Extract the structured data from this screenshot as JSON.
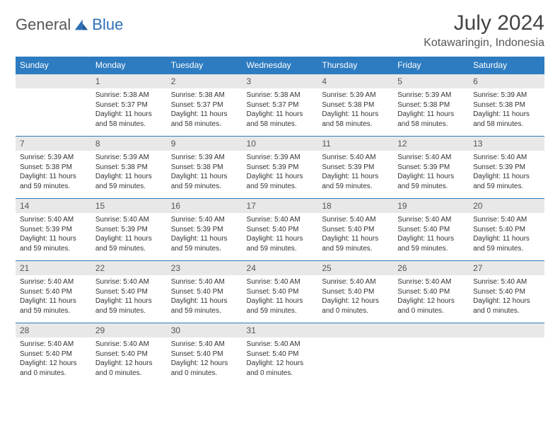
{
  "logo": {
    "text1": "General",
    "text2": "Blue"
  },
  "title": "July 2024",
  "location": "Kotawaringin, Indonesia",
  "colors": {
    "header_bg": "#2d7bc0",
    "header_text": "#ffffff",
    "daynum_bg": "#e8e8e8",
    "border": "#2d7bc0",
    "logo_accent": "#2d6fb5",
    "logo_gray": "#555555"
  },
  "days_of_week": [
    "Sunday",
    "Monday",
    "Tuesday",
    "Wednesday",
    "Thursday",
    "Friday",
    "Saturday"
  ],
  "weeks": [
    [
      null,
      {
        "n": "1",
        "sr": "5:38 AM",
        "ss": "5:37 PM",
        "dl": "11 hours and 58 minutes."
      },
      {
        "n": "2",
        "sr": "5:38 AM",
        "ss": "5:37 PM",
        "dl": "11 hours and 58 minutes."
      },
      {
        "n": "3",
        "sr": "5:38 AM",
        "ss": "5:37 PM",
        "dl": "11 hours and 58 minutes."
      },
      {
        "n": "4",
        "sr": "5:39 AM",
        "ss": "5:38 PM",
        "dl": "11 hours and 58 minutes."
      },
      {
        "n": "5",
        "sr": "5:39 AM",
        "ss": "5:38 PM",
        "dl": "11 hours and 58 minutes."
      },
      {
        "n": "6",
        "sr": "5:39 AM",
        "ss": "5:38 PM",
        "dl": "11 hours and 58 minutes."
      }
    ],
    [
      {
        "n": "7",
        "sr": "5:39 AM",
        "ss": "5:38 PM",
        "dl": "11 hours and 59 minutes."
      },
      {
        "n": "8",
        "sr": "5:39 AM",
        "ss": "5:38 PM",
        "dl": "11 hours and 59 minutes."
      },
      {
        "n": "9",
        "sr": "5:39 AM",
        "ss": "5:38 PM",
        "dl": "11 hours and 59 minutes."
      },
      {
        "n": "10",
        "sr": "5:39 AM",
        "ss": "5:39 PM",
        "dl": "11 hours and 59 minutes."
      },
      {
        "n": "11",
        "sr": "5:40 AM",
        "ss": "5:39 PM",
        "dl": "11 hours and 59 minutes."
      },
      {
        "n": "12",
        "sr": "5:40 AM",
        "ss": "5:39 PM",
        "dl": "11 hours and 59 minutes."
      },
      {
        "n": "13",
        "sr": "5:40 AM",
        "ss": "5:39 PM",
        "dl": "11 hours and 59 minutes."
      }
    ],
    [
      {
        "n": "14",
        "sr": "5:40 AM",
        "ss": "5:39 PM",
        "dl": "11 hours and 59 minutes."
      },
      {
        "n": "15",
        "sr": "5:40 AM",
        "ss": "5:39 PM",
        "dl": "11 hours and 59 minutes."
      },
      {
        "n": "16",
        "sr": "5:40 AM",
        "ss": "5:39 PM",
        "dl": "11 hours and 59 minutes."
      },
      {
        "n": "17",
        "sr": "5:40 AM",
        "ss": "5:40 PM",
        "dl": "11 hours and 59 minutes."
      },
      {
        "n": "18",
        "sr": "5:40 AM",
        "ss": "5:40 PM",
        "dl": "11 hours and 59 minutes."
      },
      {
        "n": "19",
        "sr": "5:40 AM",
        "ss": "5:40 PM",
        "dl": "11 hours and 59 minutes."
      },
      {
        "n": "20",
        "sr": "5:40 AM",
        "ss": "5:40 PM",
        "dl": "11 hours and 59 minutes."
      }
    ],
    [
      {
        "n": "21",
        "sr": "5:40 AM",
        "ss": "5:40 PM",
        "dl": "11 hours and 59 minutes."
      },
      {
        "n": "22",
        "sr": "5:40 AM",
        "ss": "5:40 PM",
        "dl": "11 hours and 59 minutes."
      },
      {
        "n": "23",
        "sr": "5:40 AM",
        "ss": "5:40 PM",
        "dl": "11 hours and 59 minutes."
      },
      {
        "n": "24",
        "sr": "5:40 AM",
        "ss": "5:40 PM",
        "dl": "11 hours and 59 minutes."
      },
      {
        "n": "25",
        "sr": "5:40 AM",
        "ss": "5:40 PM",
        "dl": "12 hours and 0 minutes."
      },
      {
        "n": "26",
        "sr": "5:40 AM",
        "ss": "5:40 PM",
        "dl": "12 hours and 0 minutes."
      },
      {
        "n": "27",
        "sr": "5:40 AM",
        "ss": "5:40 PM",
        "dl": "12 hours and 0 minutes."
      }
    ],
    [
      {
        "n": "28",
        "sr": "5:40 AM",
        "ss": "5:40 PM",
        "dl": "12 hours and 0 minutes."
      },
      {
        "n": "29",
        "sr": "5:40 AM",
        "ss": "5:40 PM",
        "dl": "12 hours and 0 minutes."
      },
      {
        "n": "30",
        "sr": "5:40 AM",
        "ss": "5:40 PM",
        "dl": "12 hours and 0 minutes."
      },
      {
        "n": "31",
        "sr": "5:40 AM",
        "ss": "5:40 PM",
        "dl": "12 hours and 0 minutes."
      },
      null,
      null,
      null
    ]
  ],
  "labels": {
    "sunrise": "Sunrise:",
    "sunset": "Sunset:",
    "daylight": "Daylight:"
  }
}
